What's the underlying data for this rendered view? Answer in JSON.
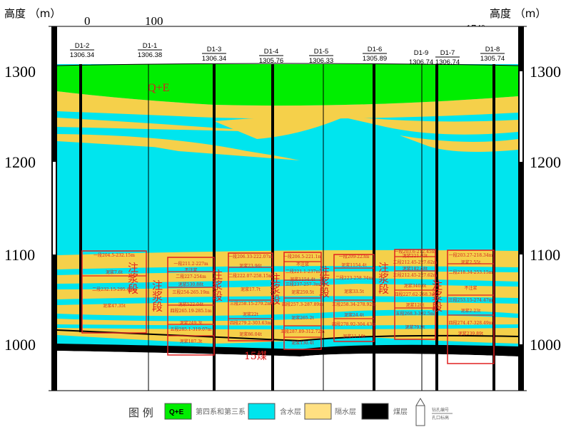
{
  "axis": {
    "left_title": "高度 （m）",
    "right_title": "高度 （m）",
    "ticks": [
      "1300",
      "1200",
      "1100",
      "1000"
    ]
  },
  "scale_bar": {
    "start": "0",
    "end": "100"
  },
  "azimuth": "174°",
  "wells": [
    {
      "id": "D1-2",
      "elev": "1306.34"
    },
    {
      "id": "D1-1",
      "elev": "1306.38"
    },
    {
      "id": "D1-3",
      "elev": "1306.34"
    },
    {
      "id": "D1-4",
      "elev": "1305.76"
    },
    {
      "id": "D1-5",
      "elev": "1306.33"
    },
    {
      "id": "D1-6",
      "elev": "1305.89"
    },
    {
      "id": "D1-9",
      "elev": "1306.74"
    },
    {
      "id": "D1-7",
      "elev": "1306.74"
    },
    {
      "id": "D1-8",
      "elev": "1305.74"
    }
  ],
  "labels": {
    "qe": "Q+E",
    "coal_seam": "15煤"
  },
  "grout_sections": [
    {
      "label": "注浆段",
      "lines": [
        "一段204.5-232.15m",
        "泥浆7.6t",
        "二段232.15-295.49m",
        "泥浆47.35t"
      ]
    },
    {
      "label": "注浆段",
      "lines": [
        "一段211.2-227m",
        "不注浆",
        "二段227-254m",
        "泥浆530.88t",
        "三段254-265.19m",
        "泥浆522.04t",
        "四段265.19-285.1m",
        "泥浆249.3t",
        "五段285.1-319.07m",
        "泥浆187.3t"
      ]
    },
    {
      "label": "注浆段",
      "lines": [
        "一段206.33-222.07m",
        "泥浆23.96t",
        "二段222.07-258.15m",
        "泥浆17.7t",
        "三段258.15-279.2m",
        "泥浆22t",
        "四段279.2-303.63m",
        "泥浆86.04t"
      ]
    },
    {
      "label": "注浆段",
      "lines": [
        "一段206.5-221.1m",
        "不注浆",
        "二段221.1-237m",
        "泥浆1154.4t",
        "三段237-257.3m",
        "泥浆259.5t",
        "四段257.3-287.89m",
        "泥浆265.2t",
        "五段287.89-312.72m",
        "泥浆130.4t"
      ]
    },
    {
      "label": "注浆段",
      "lines": [
        "一段209-223m",
        "泥浆1154.4t",
        "二段223-258.34m",
        "泥浆33.5t",
        "三段258.34-278.92m",
        "泥浆24.4t",
        "四段278.92-304.43m",
        "泥浆11.19t"
      ]
    },
    {
      "label": "注浆段",
      "lines": [
        "一段203.6-212.45m",
        "泥浆221.03t",
        "二段212.45-227.62m",
        "泥浆182.48t",
        "三段212.45-227.62m",
        "泥浆340.6t",
        "四段227.62-268.3m",
        "泥浆128t",
        "五段268.3-302.5m",
        "泥浆79.9t"
      ]
    },
    {
      "label": "注浆段",
      "lines": [
        "一段203.27-218.34m",
        "泥浆2.55t",
        "二段218.34-253.15m",
        "不注浆",
        "三段253.15-274.47m",
        "泥浆2.23t",
        "四段274.47-328.49m",
        "泥浆239.89t"
      ]
    }
  ],
  "legend": {
    "title": "图 例",
    "items": [
      {
        "swatch": "Q+E",
        "label": "第四系和第三系",
        "color": "#00ee00"
      },
      {
        "label": "含水层",
        "color": "#00e5ee"
      },
      {
        "label": "隔水层",
        "color": "#f5d04a"
      },
      {
        "label": "煤层",
        "color": "#000000"
      }
    ],
    "well_symbol": {
      "top": "钻孔编号",
      "bottom": "孔口标高"
    }
  },
  "colors": {
    "aquifer": "#00e5ee",
    "aquiclude": "#f5d04a",
    "qe": "#00ee00",
    "grout": "#e02020"
  }
}
